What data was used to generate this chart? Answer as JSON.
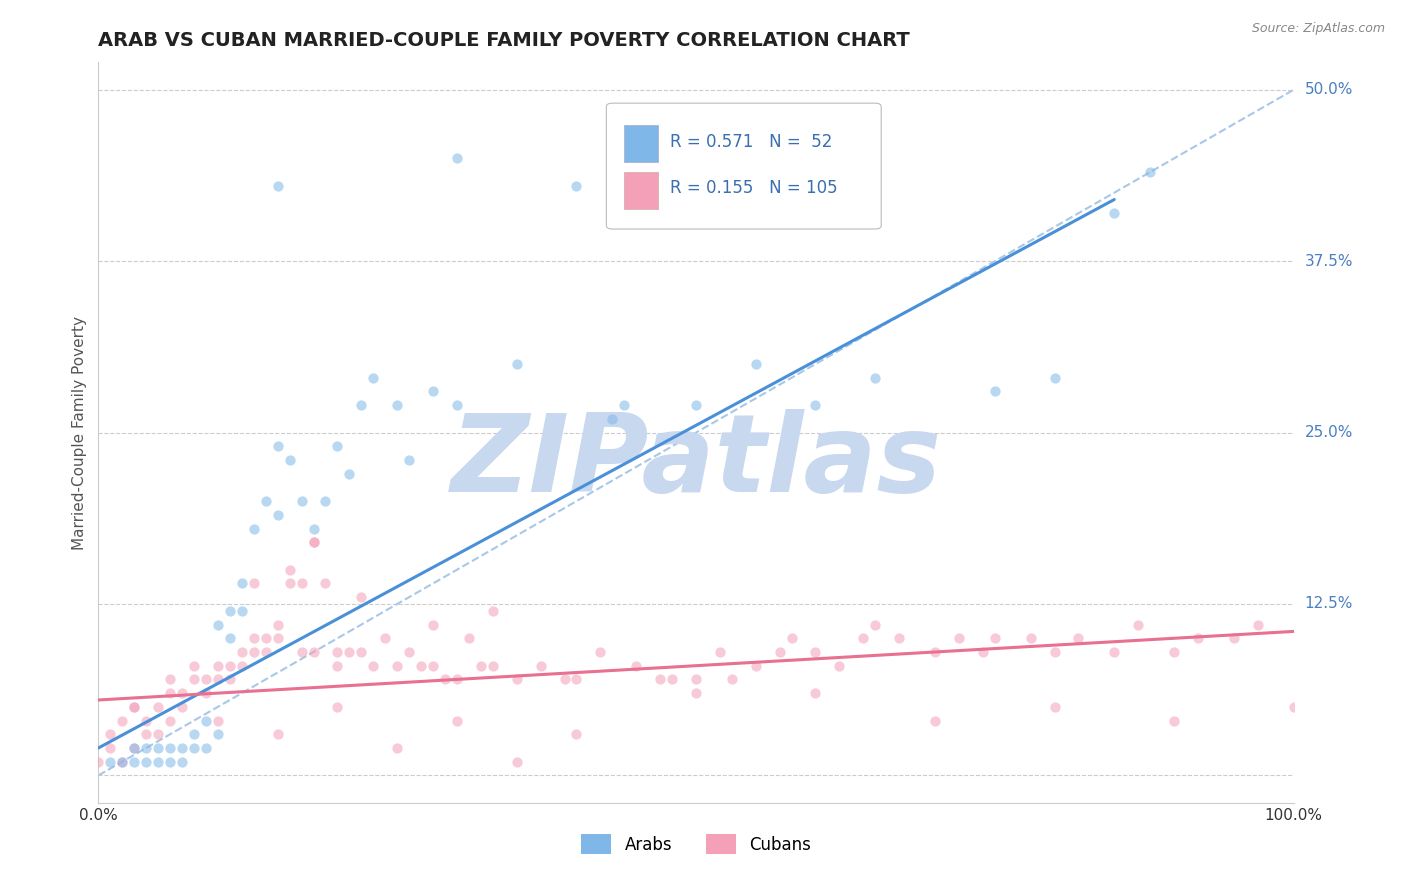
{
  "title": "ARAB VS CUBAN MARRIED-COUPLE FAMILY POVERTY CORRELATION CHART",
  "source": "Source: ZipAtlas.com",
  "ylabel": "Married-Couple Family Poverty",
  "xlim": [
    0,
    1
  ],
  "ylim": [
    -0.02,
    0.52
  ],
  "yticks": [
    0.0,
    0.125,
    0.25,
    0.375,
    0.5
  ],
  "ytick_labels": [
    "",
    "12.5%",
    "25.0%",
    "37.5%",
    "50.0%"
  ],
  "xticks": [
    0,
    1
  ],
  "xtick_labels": [
    "0.0%",
    "100.0%"
  ],
  "bg_color": "#ffffff",
  "plot_bg_color": "#ffffff",
  "arab_color": "#7fb8e8",
  "cuban_color": "#f4a0b8",
  "arab_scatter_x": [
    0.01,
    0.02,
    0.03,
    0.03,
    0.04,
    0.04,
    0.05,
    0.05,
    0.06,
    0.06,
    0.07,
    0.07,
    0.08,
    0.08,
    0.09,
    0.09,
    0.1,
    0.1,
    0.11,
    0.11,
    0.12,
    0.12,
    0.13,
    0.14,
    0.15,
    0.15,
    0.16,
    0.17,
    0.18,
    0.19,
    0.2,
    0.21,
    0.22,
    0.23,
    0.25,
    0.26,
    0.28,
    0.3,
    0.35,
    0.4,
    0.43,
    0.44,
    0.5,
    0.55,
    0.6,
    0.65,
    0.75,
    0.8,
    0.85,
    0.88,
    0.15,
    0.3
  ],
  "arab_scatter_y": [
    0.01,
    0.01,
    0.01,
    0.02,
    0.01,
    0.02,
    0.02,
    0.01,
    0.01,
    0.02,
    0.02,
    0.01,
    0.02,
    0.03,
    0.02,
    0.04,
    0.03,
    0.11,
    0.12,
    0.1,
    0.12,
    0.14,
    0.18,
    0.2,
    0.19,
    0.24,
    0.23,
    0.2,
    0.18,
    0.2,
    0.24,
    0.22,
    0.27,
    0.29,
    0.27,
    0.23,
    0.28,
    0.27,
    0.3,
    0.43,
    0.26,
    0.27,
    0.27,
    0.3,
    0.27,
    0.29,
    0.28,
    0.29,
    0.41,
    0.44,
    0.43,
    0.45
  ],
  "cuban_scatter_x": [
    0.0,
    0.01,
    0.01,
    0.02,
    0.02,
    0.03,
    0.03,
    0.04,
    0.04,
    0.05,
    0.05,
    0.06,
    0.06,
    0.07,
    0.07,
    0.08,
    0.08,
    0.09,
    0.09,
    0.1,
    0.1,
    0.11,
    0.11,
    0.12,
    0.12,
    0.13,
    0.13,
    0.14,
    0.14,
    0.15,
    0.15,
    0.16,
    0.16,
    0.17,
    0.17,
    0.18,
    0.18,
    0.19,
    0.2,
    0.2,
    0.21,
    0.22,
    0.23,
    0.24,
    0.25,
    0.26,
    0.27,
    0.28,
    0.29,
    0.3,
    0.31,
    0.32,
    0.33,
    0.35,
    0.37,
    0.39,
    0.4,
    0.42,
    0.45,
    0.47,
    0.48,
    0.5,
    0.52,
    0.53,
    0.55,
    0.57,
    0.58,
    0.6,
    0.62,
    0.64,
    0.65,
    0.67,
    0.7,
    0.72,
    0.74,
    0.75,
    0.78,
    0.8,
    0.82,
    0.85,
    0.87,
    0.9,
    0.92,
    0.95,
    0.97,
    1.0,
    0.03,
    0.06,
    0.1,
    0.15,
    0.2,
    0.25,
    0.3,
    0.35,
    0.4,
    0.5,
    0.6,
    0.7,
    0.8,
    0.9,
    0.13,
    0.18,
    0.22,
    0.28,
    0.33
  ],
  "cuban_scatter_y": [
    0.01,
    0.02,
    0.03,
    0.01,
    0.04,
    0.02,
    0.05,
    0.03,
    0.04,
    0.05,
    0.03,
    0.04,
    0.06,
    0.05,
    0.06,
    0.07,
    0.08,
    0.06,
    0.07,
    0.08,
    0.07,
    0.08,
    0.07,
    0.09,
    0.08,
    0.09,
    0.1,
    0.09,
    0.1,
    0.11,
    0.1,
    0.14,
    0.15,
    0.14,
    0.09,
    0.17,
    0.09,
    0.14,
    0.08,
    0.09,
    0.09,
    0.09,
    0.08,
    0.1,
    0.08,
    0.09,
    0.08,
    0.08,
    0.07,
    0.07,
    0.1,
    0.08,
    0.08,
    0.07,
    0.08,
    0.07,
    0.07,
    0.09,
    0.08,
    0.07,
    0.07,
    0.07,
    0.09,
    0.07,
    0.08,
    0.09,
    0.1,
    0.09,
    0.08,
    0.1,
    0.11,
    0.1,
    0.09,
    0.1,
    0.09,
    0.1,
    0.1,
    0.09,
    0.1,
    0.09,
    0.11,
    0.09,
    0.1,
    0.1,
    0.11,
    0.05,
    0.05,
    0.07,
    0.04,
    0.03,
    0.05,
    0.02,
    0.04,
    0.01,
    0.03,
    0.06,
    0.06,
    0.04,
    0.05,
    0.04,
    0.14,
    0.17,
    0.13,
    0.11,
    0.12
  ],
  "arab_line_x": [
    0.0,
    0.85
  ],
  "arab_line_y": [
    0.02,
    0.42
  ],
  "cuban_line_x": [
    0.0,
    1.0
  ],
  "cuban_line_y": [
    0.055,
    0.105
  ],
  "diag_line_x": [
    0.0,
    1.0
  ],
  "diag_line_y": [
    0.0,
    0.5
  ],
  "arab_R": "0.571",
  "arab_N": "52",
  "cuban_R": "0.155",
  "cuban_N": "105",
  "legend_labels": [
    "Arabs",
    "Cubans"
  ],
  "watermark": "ZIPatlas",
  "watermark_color": "#c8d8ef",
  "grid_color": "#cccccc",
  "title_fontsize": 14,
  "label_fontsize": 11,
  "tick_fontsize": 11,
  "scatter_size": 55,
  "scatter_alpha": 0.55,
  "line_width": 2.2
}
